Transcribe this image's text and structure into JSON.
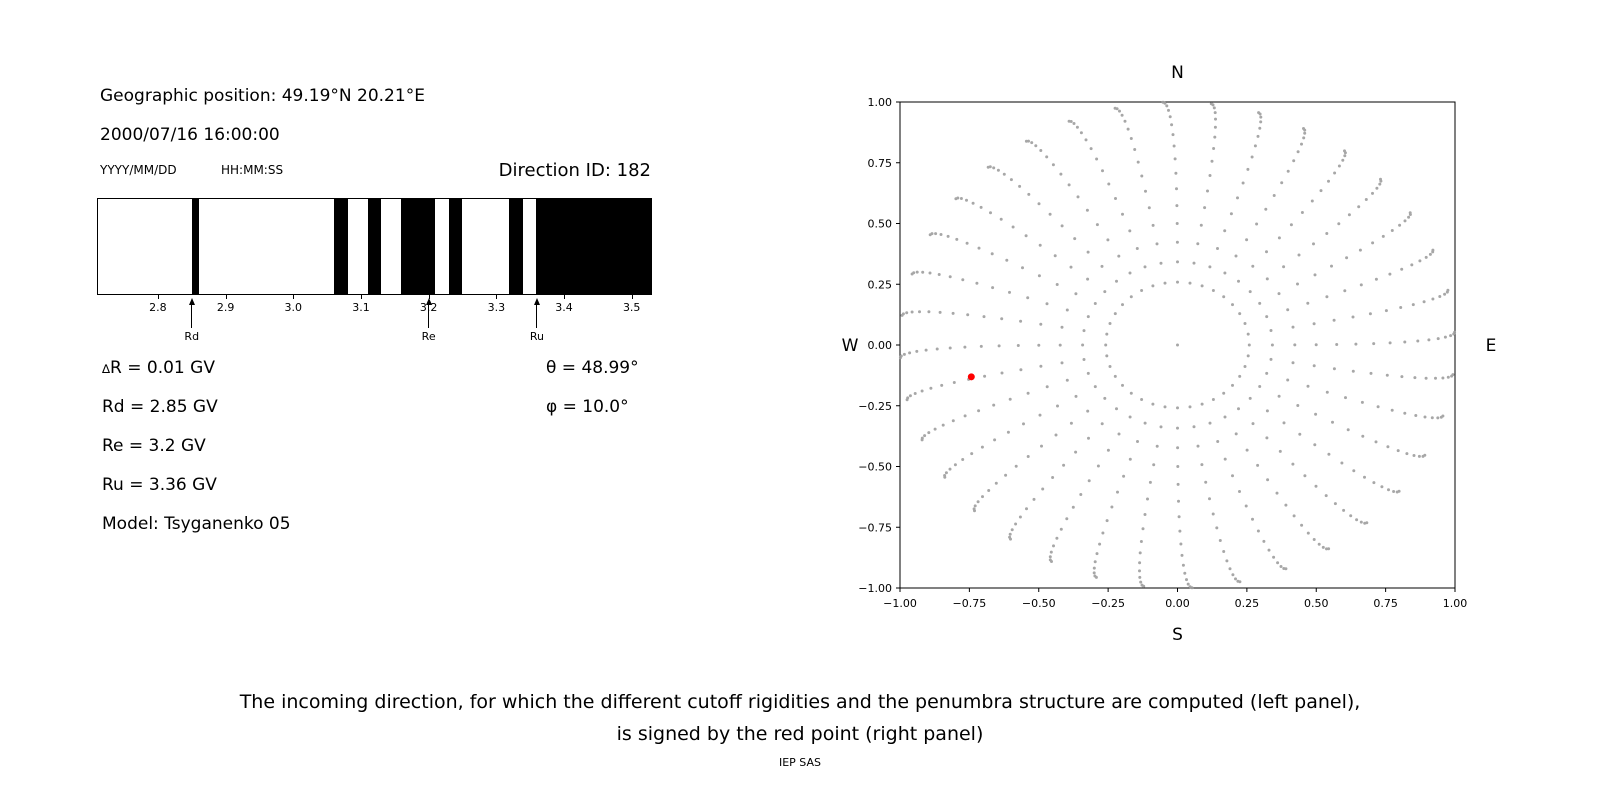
{
  "colors": {
    "foreground": "#000000",
    "background": "#ffffff",
    "bar_black": "#000000",
    "dot_gray": "#9e9e9e",
    "red_point": "#ff0000"
  },
  "header": {
    "geographic_position": "Geographic position: 49.19°N 20.21°E",
    "datetime": "2000/07/16 16:00:00",
    "date_format": "YYYY/MM/DD",
    "time_format": "HH:MM:SS",
    "direction_id": "Direction ID: 182"
  },
  "parameters": {
    "delta_symbol": "∆",
    "delta_r_text": "R = 0.01 GV",
    "rd": "Rd = 2.85 GV",
    "re": "Re = 3.2 GV",
    "ru": "Ru = 3.36 GV",
    "model": "Model: Tsyganenko 05",
    "theta": "θ = 48.99°",
    "phi": "φ = 10.0°"
  },
  "caption": {
    "line1": "The incoming direction, for which the different cutoff rigidities and the penumbra structure are computed (left panel),",
    "line2": "is signed by the red point (right panel)",
    "credit": "IEP SAS"
  },
  "chart_data": [
    {
      "name": "penumbra-spectrum",
      "type": "bar",
      "xlim": [
        2.71,
        3.53
      ],
      "xticks": [
        2.8,
        2.9,
        3.0,
        3.1,
        3.2,
        3.3,
        3.4,
        3.5
      ],
      "forbidden_intervals_gv": [
        [
          2.85,
          2.86
        ],
        [
          3.06,
          3.08
        ],
        [
          3.11,
          3.13
        ],
        [
          3.16,
          3.21
        ],
        [
          3.23,
          3.25
        ],
        [
          3.32,
          3.34
        ],
        [
          3.36,
          3.53
        ]
      ],
      "markers": [
        {
          "label": "Rd",
          "value": 2.85
        },
        {
          "label": "Re",
          "value": 3.2
        },
        {
          "label": "Ru",
          "value": 3.36
        }
      ],
      "bar_color": "#000000"
    },
    {
      "name": "incoming-direction-map",
      "type": "scatter",
      "xlim": [
        -1,
        1
      ],
      "ylim": [
        -1,
        1
      ],
      "xticks": [
        -1,
        -0.75,
        -0.5,
        -0.25,
        0,
        0.25,
        0.5,
        0.75,
        1
      ],
      "yticks": [
        -1,
        -0.75,
        -0.5,
        -0.25,
        0,
        0.25,
        0.5,
        0.75,
        1
      ],
      "xtick_labels": [
        "−1.00",
        "−0.75",
        "−0.50",
        "−0.25",
        "0.00",
        "0.25",
        "0.50",
        "0.75",
        "1.00"
      ],
      "ytick_labels": [
        "−1.00",
        "−0.75",
        "−0.50",
        "−0.25",
        "0.00",
        "0.25",
        "0.50",
        "0.75",
        "1.00"
      ],
      "compass": {
        "north": "N",
        "south": "S",
        "east": "E",
        "west": "W"
      },
      "spokes": {
        "azimuth_start_deg": 0,
        "azimuth_step_deg": 10,
        "azimuth_count": 36,
        "zenith_start_deg": 15,
        "zenith_end_deg": 90,
        "zenith_step_deg": 5,
        "radius_rule": "sin(zenith)",
        "twist_max_deg": 3,
        "twist_power": 2
      },
      "center_dot": {
        "x": 0,
        "y": 0
      },
      "dot_color": "#9e9e9e",
      "red_point": {
        "x": -0.743,
        "y": -0.131,
        "color": "#ff0000"
      }
    }
  ]
}
